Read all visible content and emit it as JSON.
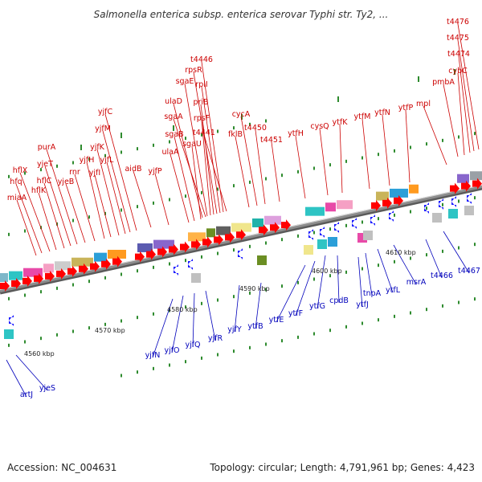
{
  "title": "Salmonella enterica subsp. enterica serovar Typhi str. Ty2, ...",
  "accession": "Accession: NC_004631",
  "summary": "Topology: circular; Length: 4,791,961 bp; Genes: 4,423",
  "colors": {
    "forward_label": "#cc0000",
    "reverse_label": "#0000bb",
    "forward_arrow": "#ff0000",
    "reverse_arrow": "#1a1aff",
    "backbone": "#8c8c8c",
    "tick": "#2e8b2e"
  },
  "kbp_ticks": [
    "4560 kbp",
    "4570 kbp",
    "4580 kbp",
    "4590 kbp",
    "4600 kbp",
    "4610 kbp"
  ],
  "forward_genes": [
    "miaA",
    "hfq",
    "hflX",
    "hflK",
    "hflC",
    "yjeT",
    "purA",
    "yjeB",
    "rnr",
    "yjfH",
    "yjfI",
    "yjfK",
    "yjfL",
    "yjfM",
    "yjfC",
    "aidB",
    "yjfP",
    "ulaA",
    "sgaB",
    "sgaU",
    "ulaD",
    "sgaA",
    "sgaE",
    "rpsF",
    "priB",
    "rpsR",
    "rplI",
    "t4446",
    "t4441",
    "fklB",
    "cycA",
    "t4450",
    "t4451",
    "ytfH",
    "cysQ",
    "ytfK",
    "ytfM",
    "ytfN",
    "ytfP",
    "mpl",
    "pmbA",
    "cybC",
    "t4474",
    "t4475",
    "t4476"
  ],
  "reverse_genes": [
    "artJ",
    "yjeS",
    "yjfN",
    "yjfO",
    "yjfQ",
    "yjfR",
    "yjfY",
    "ytfB",
    "ytfE",
    "ytfF",
    "ytfG",
    "cpdB",
    "ytfJ",
    "tnpA",
    "ytfL",
    "msrA",
    "t4466",
    "t4467"
  ]
}
